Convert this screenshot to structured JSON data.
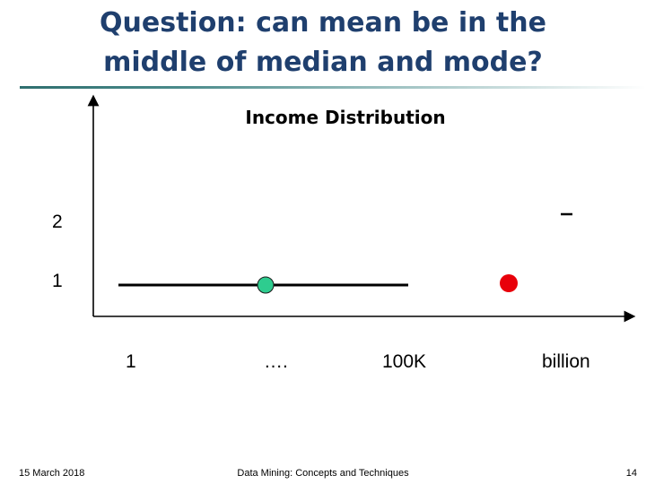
{
  "slide": {
    "title_line1": "Question: can mean be in the",
    "title_line2": "middle of median and mode?",
    "chart_title": "Income Distribution",
    "y_labels": [
      "2",
      "1"
    ],
    "x_labels": [
      "1",
      "….",
      "100K",
      "billion"
    ],
    "footer_date": "15 March 2018",
    "footer_center": "Data Mining: Concepts and Techniques",
    "page_number": "14"
  },
  "colors": {
    "title": "#1f3f6e",
    "green_marker": "#2ecc8f",
    "red_marker": "#e8000a",
    "axis": "#000000"
  }
}
